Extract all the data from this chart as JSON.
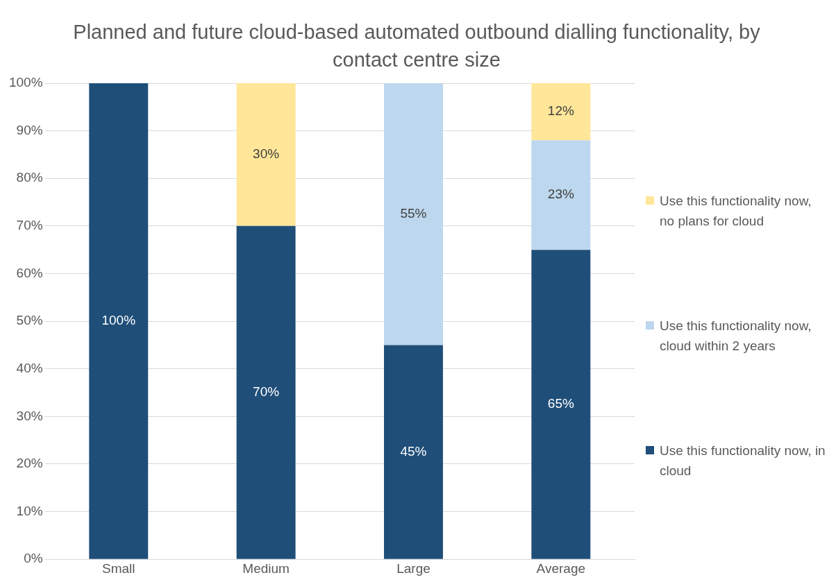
{
  "chart_data": {
    "type": "bar",
    "title": "Planned and future cloud-based automated outbound dialling functionality, by contact centre size",
    "categories": [
      "Small",
      "Medium",
      "Large",
      "Average"
    ],
    "stacked": true,
    "series": [
      {
        "name": "Use this functionality now, in cloud",
        "color": "#1f4e79",
        "values": [
          100,
          70,
          45,
          65
        ],
        "value_labels": [
          "100%",
          "70%",
          "45%",
          "65%"
        ]
      },
      {
        "name": "Use this functionality now, cloud within 2 years",
        "color": "#bdd7ee",
        "values": [
          0,
          0,
          55,
          23
        ],
        "value_labels": [
          null,
          null,
          "55%",
          "23%"
        ]
      },
      {
        "name": "Use this functionality now, no plans for cloud",
        "color": "#ffe699",
        "values": [
          0,
          30,
          0,
          12
        ],
        "value_labels": [
          null,
          "30%",
          null,
          "12%"
        ]
      }
    ],
    "ylim": [
      0,
      100
    ],
    "yticks": [
      {
        "value": 0,
        "label": "0%"
      },
      {
        "value": 10,
        "label": "10%"
      },
      {
        "value": 20,
        "label": "20%"
      },
      {
        "value": 30,
        "label": "30%"
      },
      {
        "value": 40,
        "label": "40%"
      },
      {
        "value": 50,
        "label": "50%"
      },
      {
        "value": 60,
        "label": "60%"
      },
      {
        "value": 70,
        "label": "70%"
      },
      {
        "value": 80,
        "label": "80%"
      },
      {
        "value": 90,
        "label": "90%"
      },
      {
        "value": 100,
        "label": "100%"
      }
    ],
    "grid": "y",
    "legend": "right"
  }
}
